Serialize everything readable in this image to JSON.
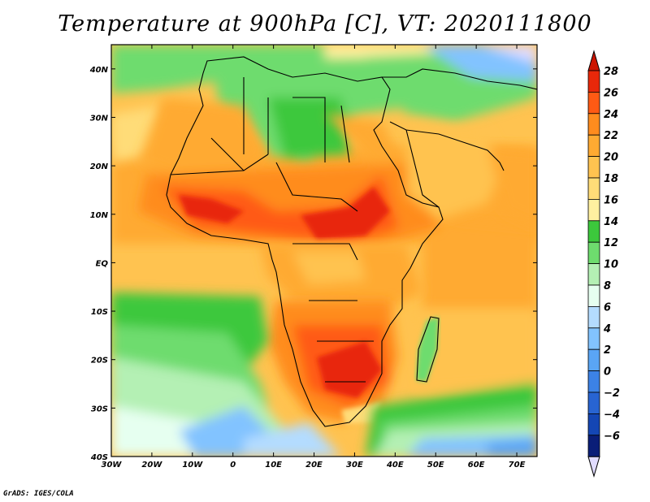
{
  "title": "Temperature at 900hPa [C], VT: 2020111800",
  "footer": "GrADS: IGES/COLA",
  "map": {
    "lon_range": [
      -30,
      75
    ],
    "lat_range": [
      -40,
      45
    ],
    "lon_ticks": [
      {
        "value": -30,
        "label": "30W"
      },
      {
        "value": -20,
        "label": "20W"
      },
      {
        "value": -10,
        "label": "10W"
      },
      {
        "value": 0,
        "label": "0"
      },
      {
        "value": 10,
        "label": "10E"
      },
      {
        "value": 20,
        "label": "20E"
      },
      {
        "value": 30,
        "label": "30E"
      },
      {
        "value": 40,
        "label": "40E"
      },
      {
        "value": 50,
        "label": "50E"
      },
      {
        "value": 60,
        "label": "60E"
      },
      {
        "value": 70,
        "label": "70E"
      }
    ],
    "lat_ticks": [
      {
        "value": 40,
        "label": "40N"
      },
      {
        "value": 30,
        "label": "30N"
      },
      {
        "value": 20,
        "label": "20N"
      },
      {
        "value": 10,
        "label": "10N"
      },
      {
        "value": 0,
        "label": "EQ"
      },
      {
        "value": -10,
        "label": "10S"
      },
      {
        "value": -20,
        "label": "20S"
      },
      {
        "value": -30,
        "label": "30S"
      },
      {
        "value": -40,
        "label": "40S"
      }
    ]
  },
  "colorbar": {
    "labels": [
      "28",
      "26",
      "24",
      "22",
      "20",
      "18",
      "16",
      "14",
      "12",
      "10",
      "8",
      "6",
      "4",
      "2",
      "0",
      "−2",
      "−4",
      "−6"
    ],
    "colors": [
      "#e8280a",
      "#ff5a14",
      "#ff8c1e",
      "#ffaa32",
      "#ffc350",
      "#ffdc78",
      "#fff0a0",
      "#3cc83c",
      "#6edc6e",
      "#b4f0b4",
      "#e6fff0",
      "#b4dcff",
      "#82c3ff",
      "#5aa5f5",
      "#3c82e6",
      "#2864d2",
      "#1446b4",
      "#0a1e78"
    ],
    "top_color": "#cc1400",
    "bottom_color": "#e1dcff"
  }
}
